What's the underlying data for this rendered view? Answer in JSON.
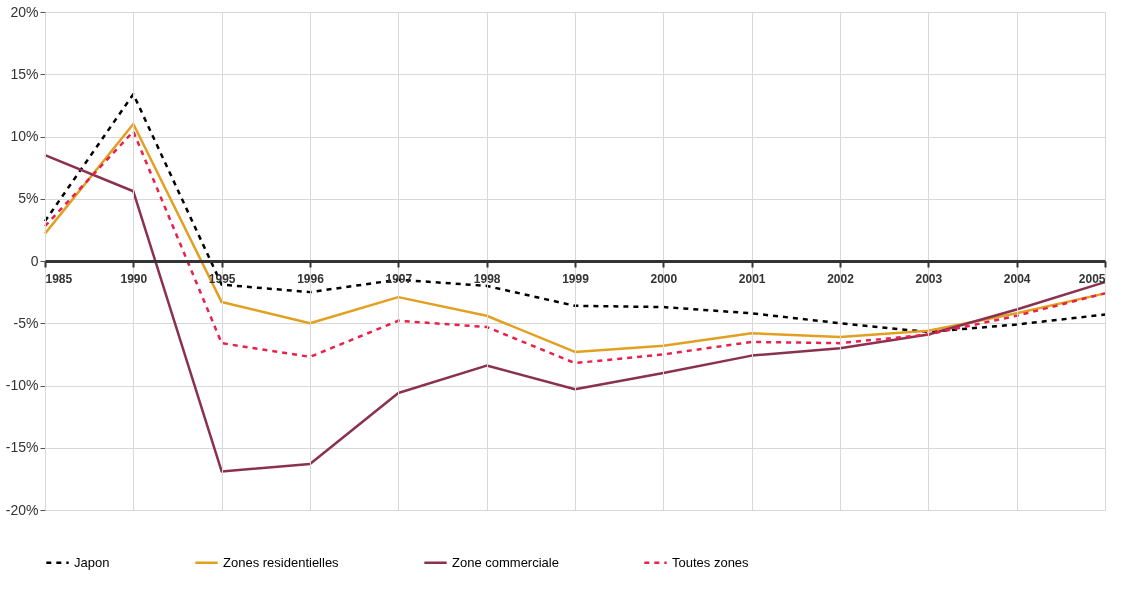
{
  "chart_data": {
    "type": "line",
    "categories": [
      "1985",
      "1990",
      "1995",
      "1996",
      "1997",
      "1998",
      "1999",
      "2000",
      "2001",
      "2002",
      "2003",
      "2004",
      "2005"
    ],
    "series": [
      {
        "name": "Japon",
        "color": "#000000",
        "line_style": "dashed",
        "values": [
          3.2,
          13.4,
          -1.9,
          -2.5,
          -1.5,
          -2.0,
          -3.6,
          -3.7,
          -4.2,
          -5.0,
          -5.7,
          -5.1,
          -4.3
        ]
      },
      {
        "name": "Zones residentielles",
        "color": "#e3a020",
        "line_style": "solid",
        "values": [
          2.2,
          11.0,
          -3.3,
          -5.0,
          -2.9,
          -4.4,
          -7.3,
          -6.8,
          -5.8,
          -6.1,
          -5.6,
          -4.2,
          -2.6
        ]
      },
      {
        "name": "Zone commerciale",
        "color": "#8a3050",
        "line_style": "solid",
        "values": [
          8.5,
          5.6,
          -16.9,
          -16.3,
          -10.6,
          -8.4,
          -10.3,
          -9.0,
          -7.6,
          -7.0,
          -5.9,
          -3.9,
          -1.7
        ]
      },
      {
        "name": "Toutes zones",
        "color": "#e8204a",
        "line_style": "dashed",
        "values": [
          2.8,
          10.4,
          -6.6,
          -7.7,
          -4.8,
          -5.3,
          -8.2,
          -7.5,
          -6.5,
          -6.6,
          -5.9,
          -4.4,
          -2.6
        ]
      }
    ],
    "ylim": [
      -20,
      20
    ],
    "yticks": [
      {
        "value": -20,
        "label": "-20%"
      },
      {
        "value": -15,
        "label": "-15%"
      },
      {
        "value": -10,
        "label": "-10%"
      },
      {
        "value": -5,
        "label": "-5%"
      },
      0,
      {
        "value": 5,
        "label": "5%"
      },
      {
        "value": 10,
        "label": "10%"
      },
      {
        "value": 15,
        "label": "15%"
      },
      {
        "value": 20,
        "label": "20%"
      }
    ],
    "grid": true,
    "legend": "bottom",
    "marker": "none"
  }
}
